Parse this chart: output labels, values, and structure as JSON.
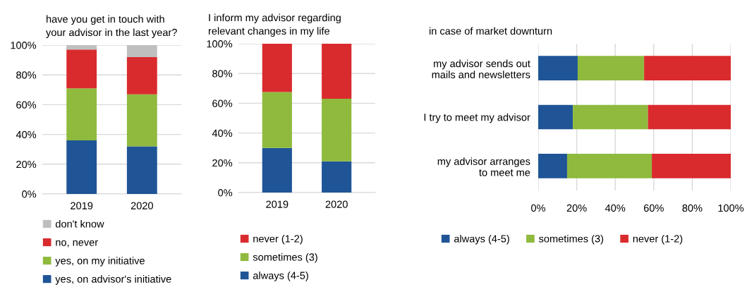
{
  "chart_data": [
    {
      "type": "bar",
      "stacked": true,
      "title": "have you get in touch with\nyour advisor in the last year?",
      "categories": [
        "2019",
        "2020"
      ],
      "series": [
        {
          "name": "yes, on advisor's initiative",
          "color": "#1f5597",
          "values": [
            36,
            32
          ]
        },
        {
          "name": "yes, on my initiative",
          "color": "#8fba3e",
          "values": [
            35,
            35
          ]
        },
        {
          "name": "no, never",
          "color": "#d92b2e",
          "values": [
            26,
            25
          ]
        },
        {
          "name": "don't know",
          "color": "#bfbfbf",
          "values": [
            3,
            8
          ]
        }
      ],
      "ylim": [
        0,
        100
      ],
      "yticks": [
        {
          "value": 0,
          "label": "0%"
        },
        {
          "value": 20,
          "label": "20%"
        },
        {
          "value": 40,
          "label": "40%"
        },
        {
          "value": 60,
          "label": "60%"
        },
        {
          "value": 80,
          "label": "80%"
        },
        {
          "value": 100,
          "label": "100%"
        }
      ],
      "grid": "y",
      "legend": "bottom"
    },
    {
      "type": "bar",
      "stacked": true,
      "title": "I inform my advisor regarding\nrelevant changes in my life",
      "categories": [
        "2019",
        "2020"
      ],
      "series": [
        {
          "name": "always (4-5)",
          "color": "#1f5597",
          "values": [
            30,
            21
          ]
        },
        {
          "name": "sometimes (3)",
          "color": "#8fba3e",
          "values": [
            37.5,
            42
          ]
        },
        {
          "name": "never (1-2)",
          "color": "#d92b2e",
          "values": [
            32.5,
            37
          ]
        }
      ],
      "ylim": [
        0,
        100
      ],
      "yticks": [
        {
          "value": 0,
          "label": "0%"
        },
        {
          "value": 20,
          "label": "20%"
        },
        {
          "value": 40,
          "label": "40%"
        },
        {
          "value": 60,
          "label": "60%"
        },
        {
          "value": 80,
          "label": "80%"
        },
        {
          "value": 100,
          "label": "100%"
        }
      ],
      "grid": "y",
      "legend": "bottom"
    },
    {
      "type": "bar",
      "stacked": true,
      "orientation": "horizontal",
      "title": "in case of market downturn",
      "categories": [
        "my advisor sends out\nmails and newsletters",
        "I try to meet my advisor",
        "my advisor arranges\nto meet me"
      ],
      "series": [
        {
          "name": "always (4-5)",
          "color": "#1f5597",
          "values": [
            20.5,
            18,
            15
          ]
        },
        {
          "name": "sometimes (3)",
          "color": "#8fba3e",
          "values": [
            34.5,
            39,
            44
          ]
        },
        {
          "name": "never (1-2)",
          "color": "#d92b2e",
          "values": [
            45,
            43,
            41
          ]
        }
      ],
      "xlim": [
        0,
        100
      ],
      "xticks": [
        {
          "value": 0,
          "label": "0%"
        },
        {
          "value": 20,
          "label": "20%"
        },
        {
          "value": 40,
          "label": "40%"
        },
        {
          "value": 60,
          "label": "60%"
        },
        {
          "value": 80,
          "label": "80%"
        },
        {
          "value": 100,
          "label": "100%"
        }
      ],
      "grid": "x",
      "legend": "bottom"
    }
  ]
}
